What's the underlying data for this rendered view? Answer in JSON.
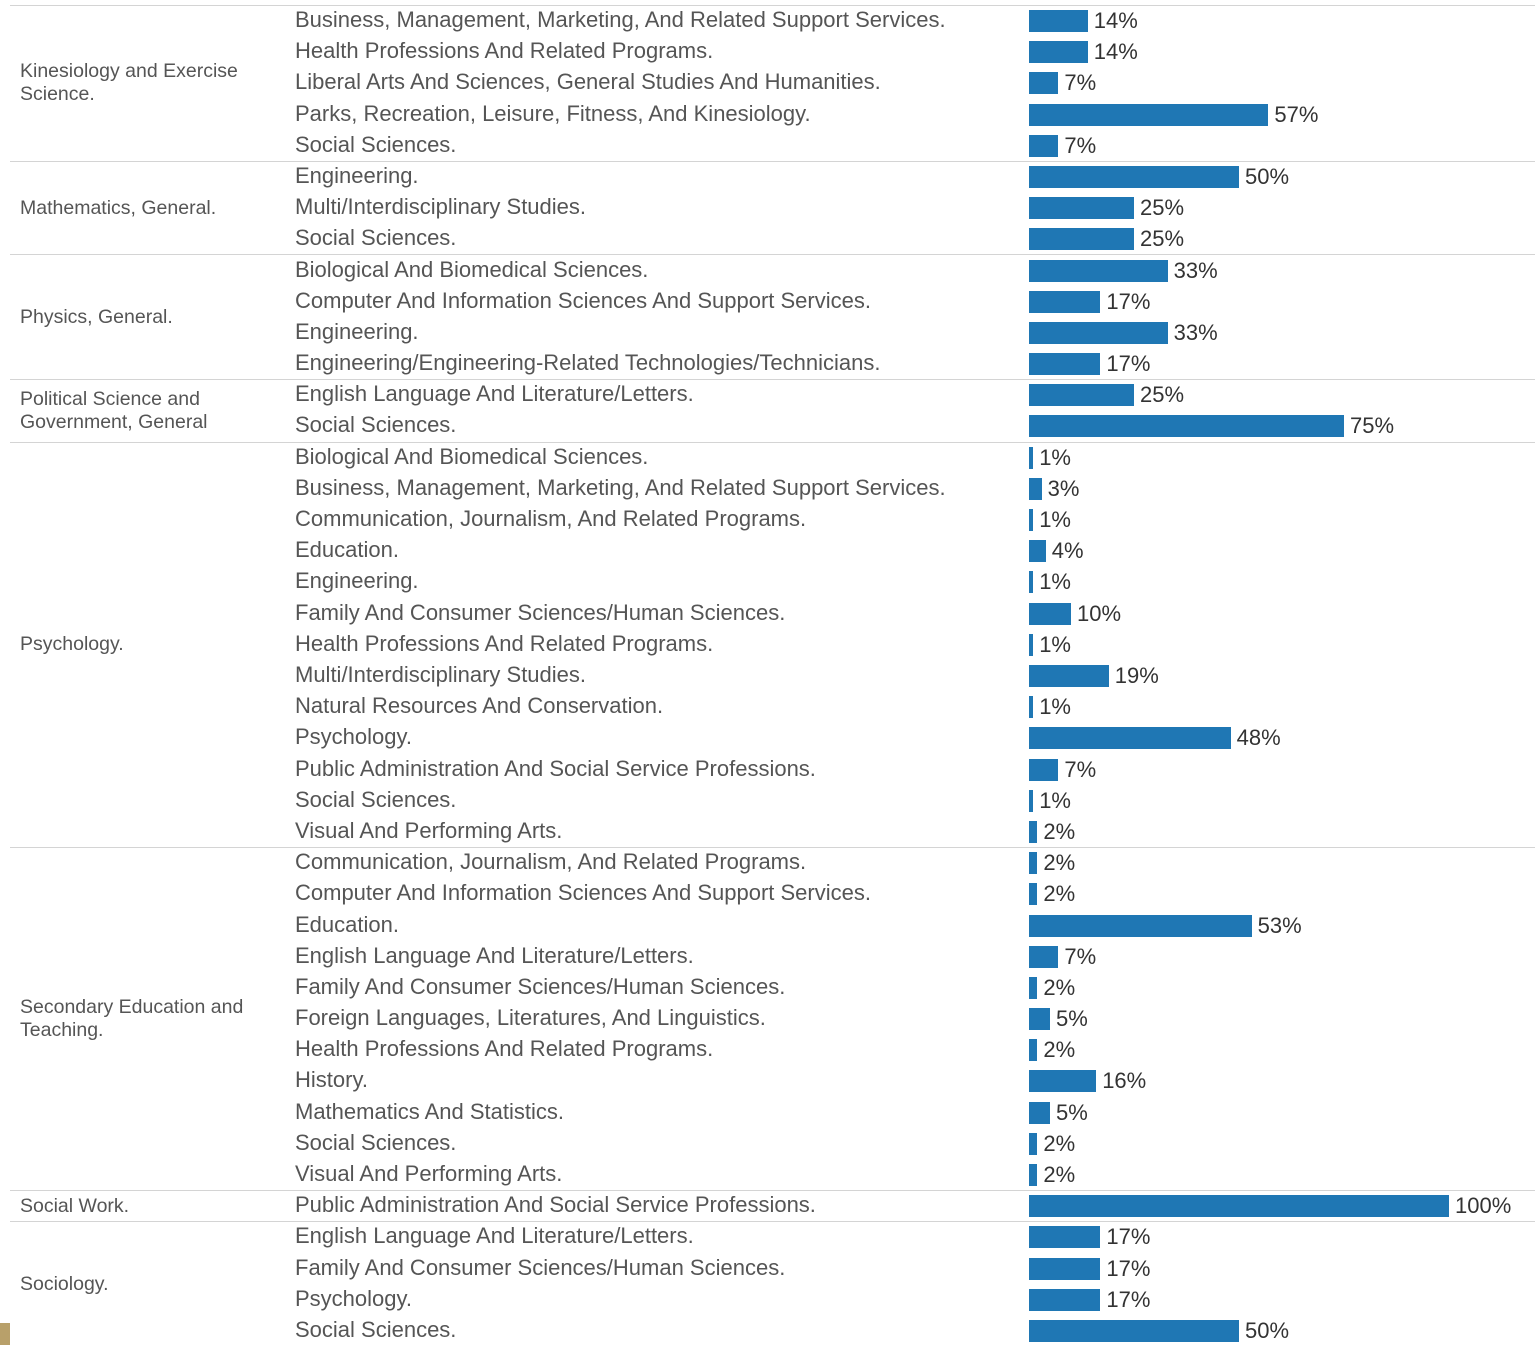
{
  "chart_data": {
    "type": "bar",
    "color": "#1f77b4",
    "xlim": [
      0,
      100
    ],
    "groups": [
      {
        "name": "Kinesiology and Exercise Science.",
        "categories": [
          "Business, Management, Marketing, And Related Support Services.",
          "Health Professions And Related Programs.",
          "Liberal Arts And Sciences, General Studies And Humanities.",
          "Parks, Recreation, Leisure, Fitness, And Kinesiology.",
          "Social Sciences."
        ],
        "values": [
          14,
          14,
          7,
          57,
          7
        ],
        "value_labels": [
          "14%",
          "14%",
          "7%",
          "57%",
          "7%"
        ]
      },
      {
        "name": "Mathematics, General.",
        "categories": [
          "Engineering.",
          "Multi/Interdisciplinary Studies.",
          "Social Sciences."
        ],
        "values": [
          50,
          25,
          25
        ],
        "value_labels": [
          "50%",
          "25%",
          "25%"
        ]
      },
      {
        "name": "Physics, General.",
        "categories": [
          "Biological And Biomedical Sciences.",
          "Computer And Information Sciences And Support Services.",
          "Engineering.",
          "Engineering/Engineering-Related Technologies/Technicians."
        ],
        "values": [
          33,
          17,
          33,
          17
        ],
        "value_labels": [
          "33%",
          "17%",
          "33%",
          "17%"
        ]
      },
      {
        "name": "Political Science and Government, General",
        "categories": [
          "English Language And Literature/Letters.",
          "Social Sciences."
        ],
        "values": [
          25,
          75
        ],
        "value_labels": [
          "25%",
          "75%"
        ]
      },
      {
        "name": "Psychology.",
        "categories": [
          "Biological And Biomedical Sciences.",
          "Business, Management, Marketing, And Related Support Services.",
          "Communication, Journalism, And Related Programs.",
          "Education.",
          "Engineering.",
          "Family And Consumer Sciences/Human Sciences.",
          "Health Professions And Related Programs.",
          "Multi/Interdisciplinary Studies.",
          "Natural Resources And Conservation.",
          "Psychology.",
          "Public Administration And Social Service Professions.",
          "Social Sciences.",
          "Visual And Performing Arts."
        ],
        "values": [
          1,
          3,
          1,
          4,
          1,
          10,
          1,
          19,
          1,
          48,
          7,
          1,
          2
        ],
        "value_labels": [
          "1%",
          "3%",
          "1%",
          "4%",
          "1%",
          "10%",
          "1%",
          "19%",
          "1%",
          "48%",
          "7%",
          "1%",
          "2%"
        ]
      },
      {
        "name": "Secondary Education and Teaching.",
        "categories": [
          "Communication, Journalism, And Related Programs.",
          "Computer And Information Sciences And Support Services.",
          "Education.",
          "English Language And Literature/Letters.",
          "Family And Consumer Sciences/Human Sciences.",
          "Foreign Languages, Literatures, And Linguistics.",
          "Health Professions And Related Programs.",
          "History.",
          "Mathematics And Statistics.",
          "Social Sciences.",
          "Visual And Performing Arts."
        ],
        "values": [
          2,
          2,
          53,
          7,
          2,
          5,
          2,
          16,
          5,
          2,
          2
        ],
        "value_labels": [
          "2%",
          "2%",
          "53%",
          "7%",
          "2%",
          "5%",
          "2%",
          "16%",
          "5%",
          "2%",
          "2%"
        ]
      },
      {
        "name": "Social Work.",
        "categories": [
          "Public Administration And Social Service Professions."
        ],
        "values": [
          100
        ],
        "value_labels": [
          "100%"
        ]
      },
      {
        "name": "Sociology.",
        "categories": [
          "English Language And Literature/Letters.",
          "Family And Consumer Sciences/Human Sciences.",
          "Psychology.",
          "Social Sciences."
        ],
        "values": [
          17,
          17,
          17,
          50
        ],
        "value_labels": [
          "17%",
          "17%",
          "17%",
          "50%"
        ]
      }
    ]
  }
}
